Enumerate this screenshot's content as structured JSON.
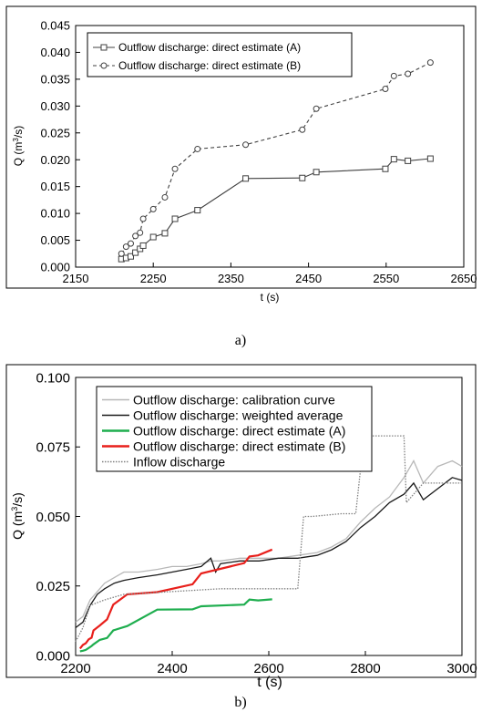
{
  "chart_data": [
    {
      "type": "line",
      "panel_caption": "a)",
      "xlabel": "t (s)",
      "ylabel_main": "Q (m",
      "ylabel_sup": "3",
      "ylabel_end": "/s)",
      "xlim": [
        2150,
        2650
      ],
      "ylim": [
        0,
        0.045
      ],
      "xticks": [
        "2150",
        "2250",
        "2350",
        "2450",
        "2550",
        "2650"
      ],
      "yticks": [
        "0.000",
        "0.005",
        "0.010",
        "0.015",
        "0.020",
        "0.025",
        "0.030",
        "0.035",
        "0.040",
        "0.045"
      ],
      "grid": false,
      "legend_position": "top-left",
      "series": [
        {
          "name": "Outflow discharge: direct estimate (A)",
          "color": "#404040",
          "style": "solid",
          "marker": "square",
          "x": [
            2209,
            2215,
            2221,
            2227,
            2233,
            2237,
            2250,
            2265,
            2278,
            2307,
            2369,
            2442,
            2460,
            2549,
            2560,
            2578,
            2607
          ],
          "y": [
            0.0015,
            0.0017,
            0.002,
            0.0027,
            0.0034,
            0.004,
            0.0056,
            0.0063,
            0.009,
            0.0106,
            0.0165,
            0.0166,
            0.0177,
            0.0183,
            0.0201,
            0.0198,
            0.0202
          ]
        },
        {
          "name": "Outflow discharge: direct estimate (B)",
          "color": "#404040",
          "style": "dashed",
          "marker": "circle",
          "x": [
            2209,
            2215,
            2221,
            2227,
            2233,
            2237,
            2250,
            2265,
            2278,
            2307,
            2369,
            2442,
            2460,
            2549,
            2560,
            2578,
            2607
          ],
          "y": [
            0.0025,
            0.0038,
            0.0044,
            0.0058,
            0.0064,
            0.009,
            0.0108,
            0.013,
            0.0183,
            0.022,
            0.0228,
            0.0256,
            0.0295,
            0.0332,
            0.0356,
            0.036,
            0.0381
          ]
        }
      ]
    },
    {
      "type": "line",
      "panel_caption": "b)",
      "xlabel": "t (s)",
      "ylabel_main": "Q (m",
      "ylabel_sup": "3",
      "ylabel_end": "/s)",
      "xlim": [
        2200,
        3000
      ],
      "ylim": [
        0,
        0.1
      ],
      "xticks": [
        "2200",
        "2400",
        "2600",
        "2800",
        "3000"
      ],
      "yticks": [
        "0.000",
        "0.025",
        "0.050",
        "0.075",
        "0.100"
      ],
      "grid": false,
      "legend_position": "top-left",
      "series": [
        {
          "name": "Outflow discharge: calibration curve",
          "color": "#b8b8b8",
          "style": "solid",
          "x": [
            2200,
            2215,
            2230,
            2245,
            2260,
            2280,
            2300,
            2330,
            2370,
            2400,
            2430,
            2460,
            2480,
            2500,
            2540,
            2580,
            2620,
            2660,
            2700,
            2730,
            2760,
            2790,
            2820,
            2850,
            2880,
            2900,
            2920,
            2950,
            2980,
            3000
          ],
          "y": [
            0.012,
            0.014,
            0.02,
            0.023,
            0.026,
            0.028,
            0.03,
            0.03,
            0.031,
            0.032,
            0.032,
            0.033,
            0.034,
            0.034,
            0.035,
            0.035,
            0.035,
            0.036,
            0.037,
            0.039,
            0.042,
            0.048,
            0.053,
            0.057,
            0.064,
            0.07,
            0.062,
            0.068,
            0.07,
            0.068
          ]
        },
        {
          "name": "Outflow discharge: weighted average",
          "color": "#1a1a1a",
          "style": "solid",
          "x": [
            2200,
            2215,
            2230,
            2245,
            2260,
            2280,
            2300,
            2330,
            2370,
            2400,
            2430,
            2460,
            2480,
            2490,
            2500,
            2540,
            2580,
            2620,
            2660,
            2700,
            2730,
            2760,
            2790,
            2820,
            2850,
            2880,
            2900,
            2920,
            2950,
            2980,
            3000
          ],
          "y": [
            0.01,
            0.012,
            0.018,
            0.022,
            0.024,
            0.026,
            0.027,
            0.028,
            0.029,
            0.03,
            0.031,
            0.032,
            0.035,
            0.03,
            0.033,
            0.034,
            0.034,
            0.035,
            0.035,
            0.036,
            0.038,
            0.041,
            0.046,
            0.05,
            0.055,
            0.058,
            0.062,
            0.056,
            0.06,
            0.064,
            0.063
          ]
        },
        {
          "name": "Outflow discharge: direct estimate (A)",
          "color": "#1fae4f",
          "style": "solid",
          "x": [
            2209,
            2215,
            2221,
            2227,
            2233,
            2237,
            2250,
            2265,
            2278,
            2307,
            2369,
            2442,
            2460,
            2549,
            2560,
            2578,
            2607
          ],
          "y": [
            0.0015,
            0.0017,
            0.002,
            0.0027,
            0.0034,
            0.004,
            0.0056,
            0.0063,
            0.009,
            0.0106,
            0.0165,
            0.0166,
            0.0177,
            0.0183,
            0.0201,
            0.0198,
            0.0202
          ]
        },
        {
          "name": "Outflow discharge: direct estimate (B)",
          "color": "#e8201c",
          "style": "solid",
          "x": [
            2209,
            2215,
            2221,
            2227,
            2233,
            2237,
            2250,
            2265,
            2278,
            2307,
            2369,
            2442,
            2460,
            2549,
            2560,
            2578,
            2607
          ],
          "y": [
            0.0025,
            0.0038,
            0.0044,
            0.0058,
            0.0064,
            0.009,
            0.0108,
            0.013,
            0.0183,
            0.022,
            0.0228,
            0.0256,
            0.0295,
            0.0332,
            0.0356,
            0.036,
            0.0381
          ]
        },
        {
          "name": "Inflow discharge",
          "color": "#808080",
          "style": "dotted",
          "x": [
            2200,
            2215,
            2230,
            2260,
            2300,
            2400,
            2500,
            2600,
            2660,
            2672,
            2690,
            2750,
            2760,
            2780,
            2790,
            2800,
            2880,
            2885,
            2920,
            3000
          ],
          "y": [
            0.005,
            0.01,
            0.018,
            0.02,
            0.022,
            0.023,
            0.024,
            0.024,
            0.024,
            0.05,
            0.05,
            0.051,
            0.051,
            0.051,
            0.067,
            0.079,
            0.079,
            0.055,
            0.062,
            0.062
          ]
        }
      ]
    }
  ]
}
